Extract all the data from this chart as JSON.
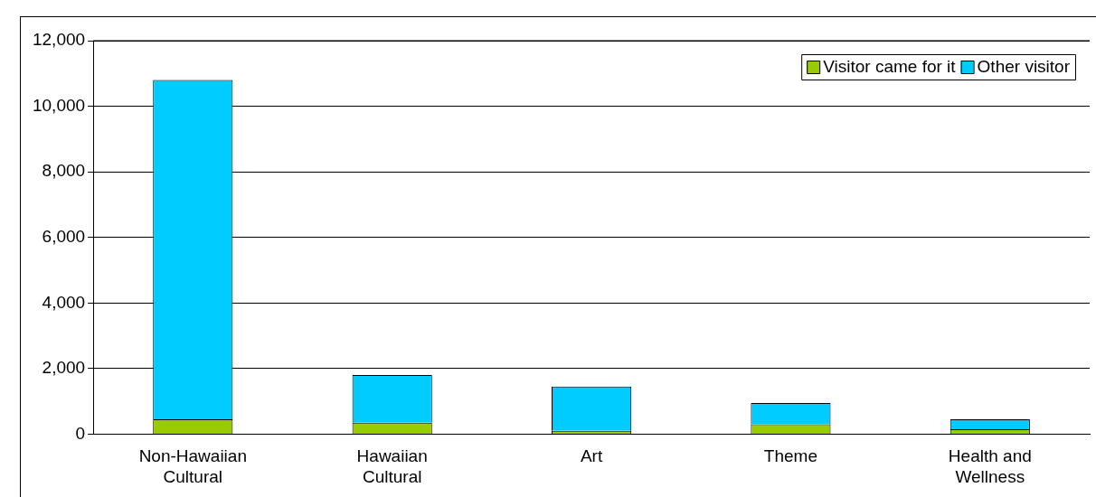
{
  "chart_data": {
    "type": "bar",
    "stacked": true,
    "categories": [
      "Non-Hawaiian Cultural",
      "Hawaiian Cultural",
      "Art",
      "Theme",
      "Health and Wellness"
    ],
    "series": [
      {
        "name": "Visitor came for it",
        "color": "#99cc00",
        "values": [
          450,
          350,
          100,
          300,
          150
        ]
      },
      {
        "name": "Other visitor",
        "color": "#00ccff",
        "values": [
          10350,
          1450,
          1350,
          650,
          300
        ]
      }
    ],
    "ylim": [
      0,
      12000
    ],
    "yticks": [
      0,
      {
        "value": 2000,
        "label": "2,000"
      },
      {
        "value": 4000,
        "label": "4,000"
      },
      {
        "value": 6000,
        "label": "6,000"
      },
      {
        "value": 8000,
        "label": "8,000"
      },
      {
        "value": 10000,
        "label": "10,000"
      },
      {
        "value": 12000,
        "label": "12,000"
      }
    ],
    "grid": "y",
    "legend": "top right"
  }
}
